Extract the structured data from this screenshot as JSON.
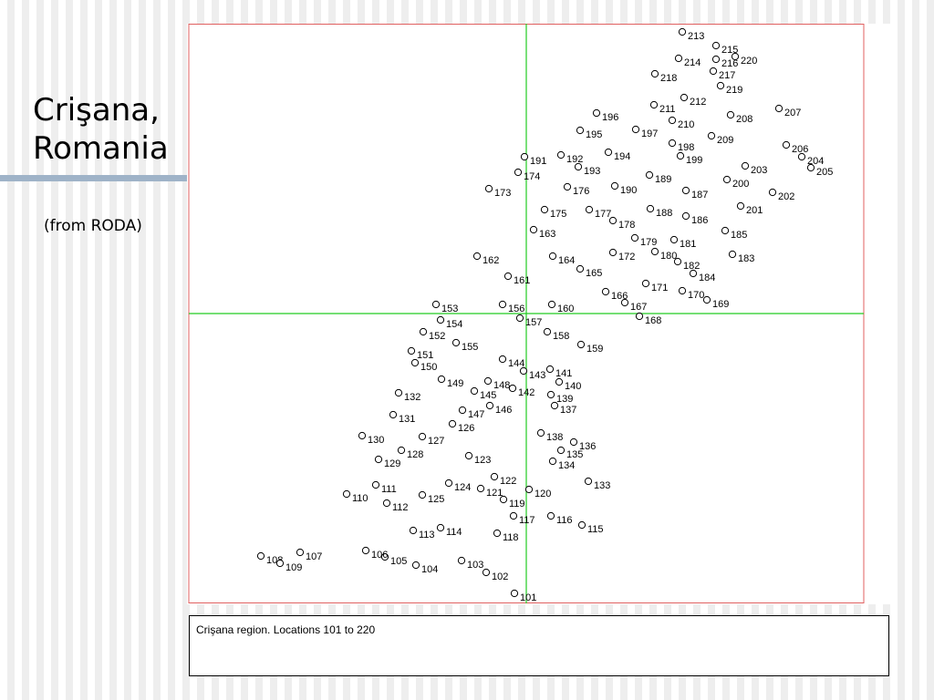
{
  "slide": {
    "title": "Crişana,\nRomania",
    "subtitle": "(from RODA)"
  },
  "caption": "Crişana region.  Locations 101 to 220",
  "colors": {
    "frame": "#e06060",
    "crosshair": "#22cc22",
    "marker": "#000000",
    "accent_bar": "#9fb3c8"
  },
  "chart_data": {
    "type": "scatter",
    "title": "",
    "xlabel": "",
    "ylabel": "",
    "xlim": [
      0,
      740
    ],
    "ylim": [
      0,
      636
    ],
    "grid": false,
    "legend": "none",
    "crosshair": {
      "x": 370,
      "y": 318
    },
    "points": [
      {
        "label": "101",
        "x": 357,
        "y": 11
      },
      {
        "label": "102",
        "x": 326,
        "y": 34
      },
      {
        "label": "103",
        "x": 299,
        "y": 47
      },
      {
        "label": "104",
        "x": 249,
        "y": 42
      },
      {
        "label": "105",
        "x": 215,
        "y": 51
      },
      {
        "label": "106",
        "x": 194,
        "y": 58
      },
      {
        "label": "107",
        "x": 122,
        "y": 56
      },
      {
        "label": "108",
        "x": 79,
        "y": 52
      },
      {
        "label": "109",
        "x": 100,
        "y": 44
      },
      {
        "label": "110",
        "x": 173,
        "y": 120
      },
      {
        "label": "111",
        "x": 205,
        "y": 130
      },
      {
        "label": "112",
        "x": 217,
        "y": 110
      },
      {
        "label": "113",
        "x": 246,
        "y": 80
      },
      {
        "label": "114",
        "x": 276,
        "y": 83
      },
      {
        "label": "115",
        "x": 431,
        "y": 86
      },
      {
        "label": "116",
        "x": 397,
        "y": 96
      },
      {
        "label": "117",
        "x": 356,
        "y": 96
      },
      {
        "label": "118",
        "x": 338,
        "y": 77
      },
      {
        "label": "119",
        "x": 345,
        "y": 114
      },
      {
        "label": "120",
        "x": 373,
        "y": 125
      },
      {
        "label": "121",
        "x": 320,
        "y": 126
      },
      {
        "label": "122",
        "x": 335,
        "y": 139
      },
      {
        "label": "123",
        "x": 307,
        "y": 162
      },
      {
        "label": "124",
        "x": 285,
        "y": 132
      },
      {
        "label": "125",
        "x": 256,
        "y": 119
      },
      {
        "label": "126",
        "x": 289,
        "y": 197
      },
      {
        "label": "127",
        "x": 256,
        "y": 183
      },
      {
        "label": "128",
        "x": 233,
        "y": 168
      },
      {
        "label": "129",
        "x": 208,
        "y": 158
      },
      {
        "label": "130",
        "x": 190,
        "y": 184
      },
      {
        "label": "131",
        "x": 224,
        "y": 207
      },
      {
        "label": "132",
        "x": 230,
        "y": 231
      },
      {
        "label": "133",
        "x": 438,
        "y": 134
      },
      {
        "label": "134",
        "x": 399,
        "y": 156
      },
      {
        "label": "135",
        "x": 408,
        "y": 168
      },
      {
        "label": "136",
        "x": 422,
        "y": 177
      },
      {
        "label": "137",
        "x": 401,
        "y": 217
      },
      {
        "label": "138",
        "x": 386,
        "y": 187
      },
      {
        "label": "139",
        "x": 397,
        "y": 229
      },
      {
        "label": "140",
        "x": 406,
        "y": 243
      },
      {
        "label": "141",
        "x": 396,
        "y": 257
      },
      {
        "label": "142",
        "x": 355,
        "y": 236
      },
      {
        "label": "143",
        "x": 367,
        "y": 255
      },
      {
        "label": "144",
        "x": 344,
        "y": 268
      },
      {
        "label": "145",
        "x": 313,
        "y": 233
      },
      {
        "label": "146",
        "x": 330,
        "y": 217
      },
      {
        "label": "147",
        "x": 300,
        "y": 212
      },
      {
        "label": "148",
        "x": 328,
        "y": 244
      },
      {
        "label": "149",
        "x": 277,
        "y": 246
      },
      {
        "label": "150",
        "x": 248,
        "y": 264
      },
      {
        "label": "151",
        "x": 244,
        "y": 277
      },
      {
        "label": "152",
        "x": 257,
        "y": 298
      },
      {
        "label": "153",
        "x": 271,
        "y": 328
      },
      {
        "label": "154",
        "x": 276,
        "y": 311
      },
      {
        "label": "155",
        "x": 293,
        "y": 286
      },
      {
        "label": "156",
        "x": 344,
        "y": 328
      },
      {
        "label": "157",
        "x": 363,
        "y": 313
      },
      {
        "label": "158",
        "x": 393,
        "y": 298
      },
      {
        "label": "159",
        "x": 430,
        "y": 284
      },
      {
        "label": "160",
        "x": 398,
        "y": 328
      },
      {
        "label": "161",
        "x": 350,
        "y": 359
      },
      {
        "label": "162",
        "x": 316,
        "y": 381
      },
      {
        "label": "163",
        "x": 378,
        "y": 410
      },
      {
        "label": "164",
        "x": 399,
        "y": 381
      },
      {
        "label": "165",
        "x": 429,
        "y": 367
      },
      {
        "label": "166",
        "x": 457,
        "y": 342
      },
      {
        "label": "167",
        "x": 478,
        "y": 330
      },
      {
        "label": "168",
        "x": 494,
        "y": 315
      },
      {
        "label": "169",
        "x": 568,
        "y": 333
      },
      {
        "label": "170",
        "x": 541,
        "y": 343
      },
      {
        "label": "171",
        "x": 501,
        "y": 351
      },
      {
        "label": "172",
        "x": 465,
        "y": 385
      },
      {
        "label": "173",
        "x": 329,
        "y": 455
      },
      {
        "label": "174",
        "x": 361,
        "y": 473
      },
      {
        "label": "175",
        "x": 390,
        "y": 432
      },
      {
        "label": "176",
        "x": 415,
        "y": 457
      },
      {
        "label": "177",
        "x": 439,
        "y": 432
      },
      {
        "label": "178",
        "x": 465,
        "y": 420
      },
      {
        "label": "179",
        "x": 489,
        "y": 401
      },
      {
        "label": "180",
        "x": 511,
        "y": 386
      },
      {
        "label": "181",
        "x": 532,
        "y": 399
      },
      {
        "label": "182",
        "x": 536,
        "y": 375
      },
      {
        "label": "183",
        "x": 596,
        "y": 383
      },
      {
        "label": "184",
        "x": 553,
        "y": 362
      },
      {
        "label": "185",
        "x": 588,
        "y": 409
      },
      {
        "label": "186",
        "x": 545,
        "y": 425
      },
      {
        "label": "187",
        "x": 545,
        "y": 453
      },
      {
        "label": "188",
        "x": 506,
        "y": 433
      },
      {
        "label": "189",
        "x": 505,
        "y": 470
      },
      {
        "label": "190",
        "x": 467,
        "y": 458
      },
      {
        "label": "191",
        "x": 368,
        "y": 490
      },
      {
        "label": "192",
        "x": 408,
        "y": 492
      },
      {
        "label": "193",
        "x": 427,
        "y": 479
      },
      {
        "label": "194",
        "x": 460,
        "y": 495
      },
      {
        "label": "195",
        "x": 429,
        "y": 519
      },
      {
        "label": "196",
        "x": 447,
        "y": 538
      },
      {
        "label": "197",
        "x": 490,
        "y": 520
      },
      {
        "label": "198",
        "x": 530,
        "y": 505
      },
      {
        "label": "199",
        "x": 539,
        "y": 491
      },
      {
        "label": "200",
        "x": 590,
        "y": 465
      },
      {
        "label": "201",
        "x": 605,
        "y": 436
      },
      {
        "label": "202",
        "x": 640,
        "y": 451
      },
      {
        "label": "203",
        "x": 610,
        "y": 480
      },
      {
        "label": "204",
        "x": 672,
        "y": 490
      },
      {
        "label": "205",
        "x": 682,
        "y": 478
      },
      {
        "label": "206",
        "x": 655,
        "y": 503
      },
      {
        "label": "207",
        "x": 647,
        "y": 543
      },
      {
        "label": "208",
        "x": 594,
        "y": 536
      },
      {
        "label": "209",
        "x": 573,
        "y": 513
      },
      {
        "label": "210",
        "x": 530,
        "y": 530
      },
      {
        "label": "211",
        "x": 510,
        "y": 547
      },
      {
        "label": "212",
        "x": 543,
        "y": 555
      },
      {
        "label": "213",
        "x": 541,
        "y": 627
      },
      {
        "label": "214",
        "x": 537,
        "y": 598
      },
      {
        "label": "215",
        "x": 578,
        "y": 612
      },
      {
        "label": "216",
        "x": 578,
        "y": 597
      },
      {
        "label": "217",
        "x": 575,
        "y": 584
      },
      {
        "label": "218",
        "x": 511,
        "y": 581
      },
      {
        "label": "219",
        "x": 583,
        "y": 568
      },
      {
        "label": "220",
        "x": 599,
        "y": 600
      }
    ]
  }
}
